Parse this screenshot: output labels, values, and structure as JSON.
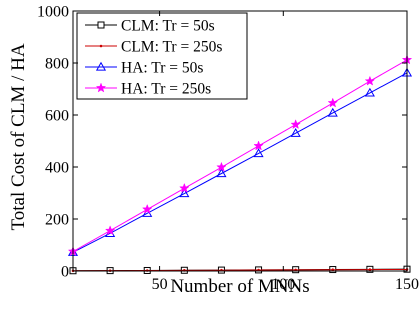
{
  "chart_data": {
    "type": "line",
    "xlabel": "Number of MNNs",
    "ylabel": "Total Cost of CLM / HA",
    "xlim": [
      15,
      150
    ],
    "ylim": [
      0,
      1000
    ],
    "xticks": [
      50,
      100,
      150
    ],
    "yticks": [
      0,
      200,
      400,
      600,
      800,
      1000
    ],
    "grid": false,
    "legend_position": "top-left",
    "x": [
      15,
      30,
      45,
      60,
      75,
      90,
      105,
      120,
      135,
      150
    ],
    "series": [
      {
        "name": "CLM: Tr = 50s",
        "color": "#000000",
        "marker": "square",
        "values": [
          1.0,
          1.5,
          2.0,
          2.8,
          3.5,
          4.2,
          5.0,
          5.6,
          6.4,
          7.0
        ]
      },
      {
        "name": "CLM: Tr = 250s",
        "color": "#cc0000",
        "marker": "dot",
        "values": [
          0.8,
          1.3,
          1.9,
          2.5,
          3.1,
          3.7,
          4.3,
          4.9,
          5.4,
          6.0
        ]
      },
      {
        "name": "HA: Tr = 50s",
        "color": "#0000ff",
        "marker": "triangle",
        "values": [
          72,
          145,
          222,
          298,
          375,
          452,
          530,
          608,
          685,
          762
        ]
      },
      {
        "name": "HA: Tr = 250s",
        "color": "#ff00ff",
        "marker": "star",
        "values": [
          75,
          155,
          237,
          318,
          399,
          481,
          563,
          646,
          730,
          812
        ]
      }
    ]
  }
}
